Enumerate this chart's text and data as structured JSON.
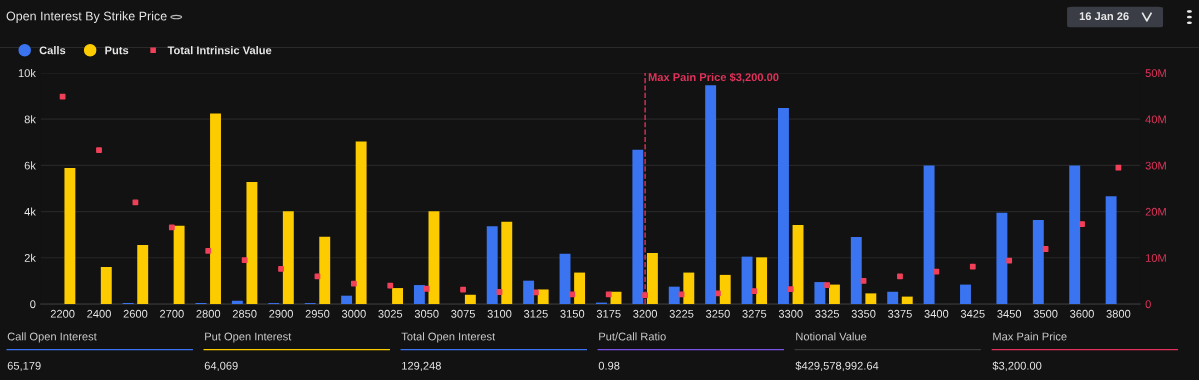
{
  "chart_data": {
    "type": "bar",
    "title": "Open Interest By Strike Price",
    "categories": [
      "2200",
      "2400",
      "2600",
      "2700",
      "2800",
      "2850",
      "2900",
      "2950",
      "3000",
      "3025",
      "3050",
      "3075",
      "3100",
      "3125",
      "3150",
      "3175",
      "3200",
      "3225",
      "3250",
      "3275",
      "3300",
      "3325",
      "3350",
      "3375",
      "3400",
      "3425",
      "3450",
      "3500",
      "3600",
      "3800"
    ],
    "series": [
      {
        "name": "Calls",
        "color": "#3b74f0",
        "values": [
          null,
          null,
          0.04,
          null,
          0.04,
          0.14,
          0.04,
          0.04,
          0.36,
          null,
          0.82,
          null,
          3.36,
          1.01,
          2.18,
          0.06,
          6.68,
          0.75,
          9.47,
          2.05,
          8.48,
          0.95,
          2.9,
          0.53,
          6.0,
          0.84,
          3.95,
          3.64,
          6.0,
          4.66
        ]
      },
      {
        "name": "Puts",
        "color": "#fccb00",
        "values": [
          5.89,
          1.6,
          2.55,
          3.39,
          8.24,
          5.28,
          4.01,
          2.91,
          7.03,
          0.69,
          4.01,
          0.4,
          3.56,
          0.63,
          1.36,
          0.53,
          2.21,
          1.36,
          1.26,
          2.02,
          3.42,
          0.84,
          0.46,
          0.32,
          null,
          null,
          null,
          null,
          null,
          null
        ]
      },
      {
        "name": "Total Intrinsic Value",
        "type": "scatter",
        "axis": "y2",
        "marker": "square",
        "color": "#f0405a",
        "values": [
          44.9,
          33.3,
          22.0,
          16.6,
          11.5,
          9.5,
          7.6,
          6.0,
          4.4,
          4.0,
          3.3,
          3.1,
          2.6,
          2.5,
          2.1,
          2.1,
          1.9,
          2.1,
          2.3,
          2.8,
          3.2,
          4.1,
          5.0,
          6.0,
          7.0,
          8.1,
          9.4,
          11.9,
          17.3,
          29.5
        ]
      }
    ],
    "ylim": [
      0,
      10
    ],
    "yticks": [
      {
        "value": 0,
        "label": "0"
      },
      {
        "value": 2,
        "label": "2k"
      },
      {
        "value": 4,
        "label": "4k"
      },
      {
        "value": 6,
        "label": "6k"
      },
      {
        "value": 8,
        "label": "8k"
      },
      {
        "value": 10,
        "label": "10k"
      }
    ],
    "y2lim": [
      0,
      50
    ],
    "y2ticks": [
      {
        "value": 0,
        "label": "0"
      },
      {
        "value": 10,
        "label": "10M"
      },
      {
        "value": 20,
        "label": "20M"
      },
      {
        "value": 30,
        "label": "30M"
      },
      {
        "value": 40,
        "label": "40M"
      },
      {
        "value": 50,
        "label": "50M"
      }
    ],
    "ref_lines": [
      {
        "axis": "x",
        "value": "3200",
        "label": "Max Pain Price $3,200.00",
        "color": "#e0325a",
        "line_style": "dashed"
      }
    ],
    "grid": "y",
    "legend": "top left",
    "annotations": [
      "16 Jan 26",
      "Call Open Interest",
      "65,179",
      "Put Open Interest",
      "64,069",
      "Total Open Interest",
      "129,248",
      "Put/Call Ratio",
      "0.98",
      "Notional Value",
      "$429,578,992.64",
      "Max Pain Price",
      "$3,200.00"
    ]
  }
}
